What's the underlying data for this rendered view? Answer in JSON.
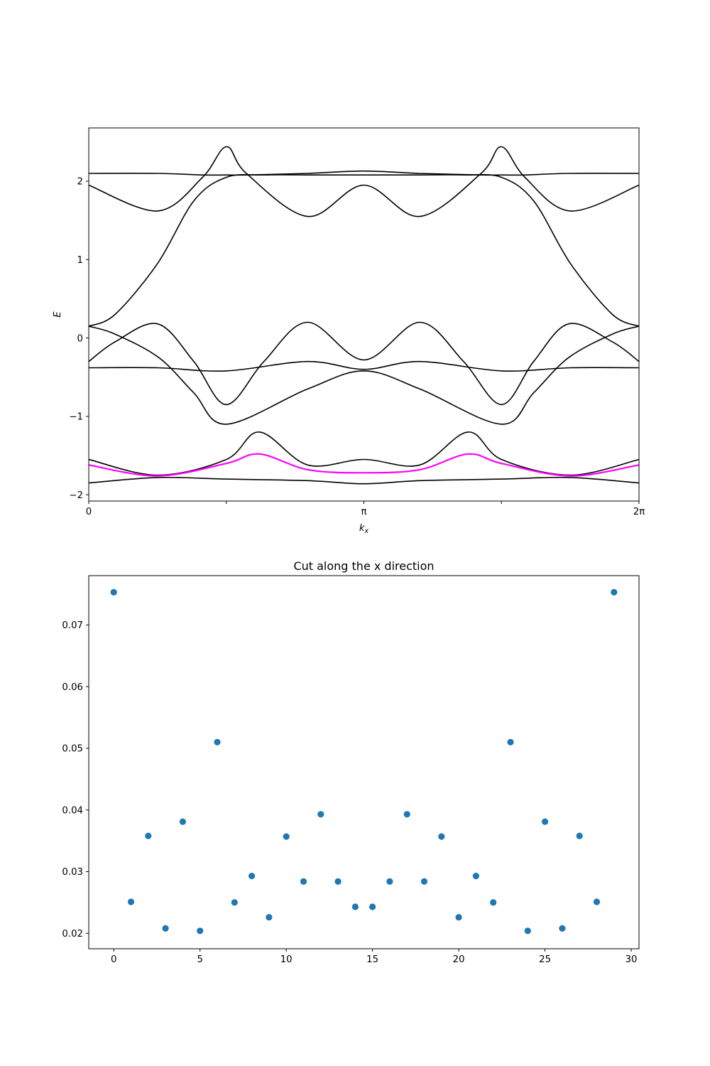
{
  "chart_data": [
    {
      "type": "line",
      "title": "",
      "xlabel": "k_x",
      "ylabel": "E",
      "xlim": [
        0,
        6.2832
      ],
      "ylim": [
        -2.08,
        2.68
      ],
      "xticks": [
        {
          "value": 0,
          "label": "0"
        },
        {
          "value": 1.5708,
          "label": ""
        },
        {
          "value": 3.1416,
          "label": "π"
        },
        {
          "value": 4.7124,
          "label": ""
        },
        {
          "value": 6.2832,
          "label": "2π"
        }
      ],
      "yticks": [
        {
          "value": -2,
          "label": "−2"
        },
        {
          "value": -1,
          "label": "−1"
        },
        {
          "value": 0,
          "label": "0"
        },
        {
          "value": 1,
          "label": "1"
        },
        {
          "value": 2,
          "label": "2"
        }
      ],
      "grid": false,
      "series": [
        {
          "color": "#000000",
          "x": [
            0,
            0.7854,
            1.3,
            1.5708,
            1.8,
            2.5,
            3.1416,
            3.78,
            4.48,
            4.7124,
            4.98,
            5.5,
            6.2832
          ],
          "values": [
            1.95,
            1.62,
            2.05,
            2.44,
            2.1,
            1.55,
            1.95,
            1.55,
            2.1,
            2.44,
            2.05,
            1.62,
            1.95
          ]
        },
        {
          "color": "#000000",
          "x": [
            0,
            0.7854,
            1.3,
            1.5708,
            1.8,
            2.5,
            3.1416,
            3.78,
            4.48,
            4.7124,
            4.98,
            5.5,
            6.2832
          ],
          "values": [
            2.1,
            2.1,
            2.08,
            2.08,
            2.08,
            2.1,
            2.13,
            2.1,
            2.08,
            2.08,
            2.08,
            2.1,
            2.1
          ]
        },
        {
          "color": "#000000",
          "x": [
            0,
            0.3,
            0.7854,
            1.2,
            1.5708,
            2.0,
            2.6,
            3.1416,
            3.68,
            4.28,
            4.7124,
            5.08,
            5.5,
            5.98,
            6.2832
          ],
          "values": [
            0.15,
            0.3,
            0.95,
            1.75,
            2.05,
            2.08,
            2.08,
            2.08,
            2.08,
            2.08,
            2.05,
            1.75,
            0.95,
            0.3,
            0.15
          ]
        },
        {
          "color": "#000000",
          "x": [
            0,
            0.3,
            0.8,
            1.2,
            1.5708,
            2.5,
            3.1416,
            3.78,
            4.7124,
            5.08,
            5.48,
            5.98,
            6.2832
          ],
          "values": [
            0.15,
            0.05,
            -0.25,
            -0.7,
            -1.1,
            -0.65,
            -0.42,
            -0.65,
            -1.1,
            -0.7,
            -0.25,
            0.05,
            0.15
          ]
        },
        {
          "color": "#000000",
          "x": [
            0,
            0.3,
            0.7854,
            1.2,
            1.5708,
            2.0,
            2.5,
            3.1416,
            3.78,
            4.28,
            4.7124,
            5.08,
            5.48,
            5.98,
            6.2832
          ],
          "values": [
            -0.3,
            -0.05,
            0.18,
            -0.3,
            -0.85,
            -0.3,
            0.2,
            -0.28,
            0.2,
            -0.3,
            -0.85,
            -0.3,
            0.18,
            -0.05,
            -0.3
          ]
        },
        {
          "color": "#000000",
          "x": [
            0,
            0.7854,
            1.5708,
            2.5,
            3.1416,
            3.78,
            4.7124,
            5.5,
            6.2832
          ],
          "values": [
            -0.38,
            -0.38,
            -0.42,
            -0.3,
            -0.4,
            -0.3,
            -0.42,
            -0.38,
            -0.38
          ]
        },
        {
          "color": "#000000",
          "x": [
            0,
            0.7854,
            1.5708,
            1.95,
            2.5,
            3.1416,
            3.78,
            4.33,
            4.7124,
            5.5,
            6.2832
          ],
          "values": [
            -1.55,
            -1.75,
            -1.55,
            -1.2,
            -1.62,
            -1.55,
            -1.62,
            -1.2,
            -1.55,
            -1.75,
            -1.55
          ]
        },
        {
          "color": "#000000",
          "x": [
            0,
            0.7854,
            1.5708,
            2.5,
            3.1416,
            3.78,
            4.7124,
            5.5,
            6.2832
          ],
          "values": [
            -1.85,
            -1.78,
            -1.8,
            -1.82,
            -1.86,
            -1.82,
            -1.8,
            -1.78,
            -1.85
          ]
        },
        {
          "color": "#ff00ff",
          "x": [
            0,
            0.7854,
            1.5708,
            1.95,
            2.5,
            3.1416,
            3.78,
            4.33,
            4.7124,
            5.5,
            6.2832
          ],
          "values": [
            -1.62,
            -1.76,
            -1.6,
            -1.48,
            -1.68,
            -1.72,
            -1.68,
            -1.48,
            -1.6,
            -1.76,
            -1.62
          ]
        }
      ]
    },
    {
      "type": "scatter",
      "title": "Cut along the x direction",
      "xlabel": "",
      "ylabel": "",
      "xlim": [
        -1.45,
        30.45
      ],
      "ylim": [
        0.0175,
        0.078
      ],
      "xticks": [
        {
          "value": 0,
          "label": "0"
        },
        {
          "value": 5,
          "label": "5"
        },
        {
          "value": 10,
          "label": "10"
        },
        {
          "value": 15,
          "label": "15"
        },
        {
          "value": 20,
          "label": "20"
        },
        {
          "value": 25,
          "label": "25"
        },
        {
          "value": 30,
          "label": "30"
        }
      ],
      "yticks": [
        {
          "value": 0.02,
          "label": "0.02"
        },
        {
          "value": 0.03,
          "label": "0.03"
        },
        {
          "value": 0.04,
          "label": "0.04"
        },
        {
          "value": 0.05,
          "label": "0.05"
        },
        {
          "value": 0.06,
          "label": "0.06"
        },
        {
          "value": 0.07,
          "label": "0.07"
        }
      ],
      "grid": false,
      "marker_color": "#1f77b4",
      "x": [
        0,
        1,
        2,
        3,
        4,
        5,
        6,
        7,
        8,
        9,
        10,
        11,
        12,
        13,
        14,
        15,
        16,
        17,
        18,
        19,
        20,
        21,
        22,
        23,
        24,
        25,
        26,
        27,
        28,
        29
      ],
      "y": [
        0.0753,
        0.0251,
        0.0358,
        0.0208,
        0.0381,
        0.0204,
        0.051,
        0.025,
        0.0293,
        0.0226,
        0.0357,
        0.0284,
        0.0393,
        0.0284,
        0.0243,
        0.0243,
        0.0284,
        0.0393,
        0.0284,
        0.0357,
        0.0226,
        0.0293,
        0.025,
        0.051,
        0.0204,
        0.0381,
        0.0208,
        0.0358,
        0.0251,
        0.0753
      ]
    }
  ]
}
